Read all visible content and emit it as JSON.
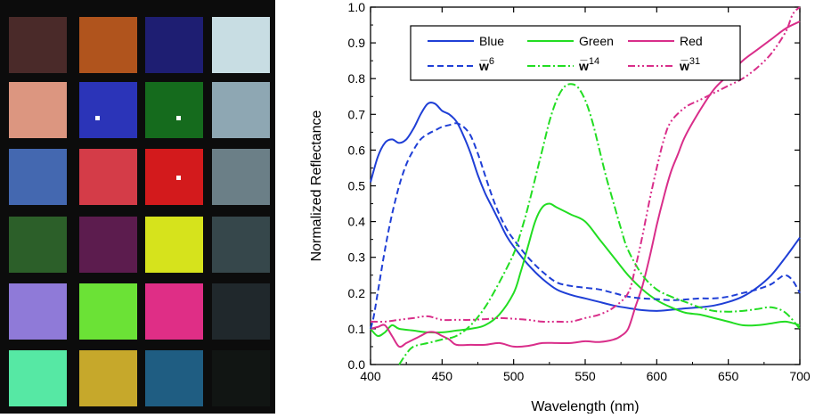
{
  "checker": {
    "patches": [
      [
        "#4a2a29",
        "#b0541d",
        "#1e1e72",
        "#c8dde3"
      ],
      [
        "#dc9680",
        "#2b34b8",
        "#156b1d",
        "#8ea7b3"
      ],
      [
        "#4468b0",
        "#d43c48",
        "#d31a1c",
        "#6b7f87"
      ],
      [
        "#2c5f29",
        "#5c1c4e",
        "#d6e31c",
        "#36474b"
      ],
      [
        "#8f7ad8",
        "#6be236",
        "#df2e86",
        "#20282c"
      ],
      [
        "#56e8a4",
        "#c6a82b",
        "#1f5d82",
        "#111513"
      ]
    ],
    "marked_patches": [
      [
        1,
        1
      ],
      [
        1,
        2
      ],
      [
        2,
        2
      ]
    ]
  },
  "chart_data": {
    "type": "line",
    "xlabel": "Wavelength (nm)",
    "ylabel": "Normalized Reflectance",
    "xlim": [
      400,
      700
    ],
    "ylim": [
      0,
      1.0
    ],
    "xticks": [
      "400",
      "450",
      "500",
      "550",
      "600",
      "650",
      "700"
    ],
    "yticks": [
      "0.0",
      "0.1",
      "0.2",
      "0.3",
      "0.4",
      "0.5",
      "0.6",
      "0.7",
      "0.8",
      "0.9",
      "1.0"
    ],
    "legend_position": "top",
    "series": [
      {
        "name": "Blue",
        "color": "#1f3fd6",
        "dash": "solid",
        "points": [
          [
            400,
            0.51
          ],
          [
            405,
            0.58
          ],
          [
            410,
            0.62
          ],
          [
            415,
            0.63
          ],
          [
            420,
            0.62
          ],
          [
            425,
            0.63
          ],
          [
            430,
            0.66
          ],
          [
            435,
            0.7
          ],
          [
            440,
            0.73
          ],
          [
            445,
            0.73
          ],
          [
            450,
            0.71
          ],
          [
            455,
            0.7
          ],
          [
            460,
            0.68
          ],
          [
            465,
            0.64
          ],
          [
            470,
            0.59
          ],
          [
            475,
            0.53
          ],
          [
            480,
            0.48
          ],
          [
            485,
            0.44
          ],
          [
            490,
            0.4
          ],
          [
            495,
            0.36
          ],
          [
            500,
            0.33
          ],
          [
            510,
            0.28
          ],
          [
            520,
            0.24
          ],
          [
            530,
            0.21
          ],
          [
            540,
            0.195
          ],
          [
            550,
            0.185
          ],
          [
            560,
            0.175
          ],
          [
            570,
            0.165
          ],
          [
            580,
            0.158
          ],
          [
            590,
            0.152
          ],
          [
            600,
            0.15
          ],
          [
            610,
            0.153
          ],
          [
            620,
            0.157
          ],
          [
            630,
            0.16
          ],
          [
            640,
            0.165
          ],
          [
            650,
            0.175
          ],
          [
            660,
            0.19
          ],
          [
            670,
            0.215
          ],
          [
            680,
            0.25
          ],
          [
            690,
            0.3
          ],
          [
            700,
            0.355
          ]
        ]
      },
      {
        "name": "Green",
        "color": "#22dd22",
        "dash": "solid",
        "points": [
          [
            400,
            0.1
          ],
          [
            405,
            0.08
          ],
          [
            410,
            0.09
          ],
          [
            415,
            0.11
          ],
          [
            420,
            0.1
          ],
          [
            430,
            0.095
          ],
          [
            440,
            0.09
          ],
          [
            450,
            0.09
          ],
          [
            460,
            0.095
          ],
          [
            470,
            0.1
          ],
          [
            480,
            0.11
          ],
          [
            490,
            0.14
          ],
          [
            500,
            0.2
          ],
          [
            505,
            0.26
          ],
          [
            510,
            0.33
          ],
          [
            515,
            0.4
          ],
          [
            520,
            0.44
          ],
          [
            525,
            0.45
          ],
          [
            530,
            0.44
          ],
          [
            540,
            0.42
          ],
          [
            550,
            0.4
          ],
          [
            560,
            0.35
          ],
          [
            570,
            0.3
          ],
          [
            580,
            0.25
          ],
          [
            590,
            0.21
          ],
          [
            600,
            0.18
          ],
          [
            610,
            0.16
          ],
          [
            620,
            0.145
          ],
          [
            630,
            0.14
          ],
          [
            640,
            0.13
          ],
          [
            650,
            0.12
          ],
          [
            660,
            0.11
          ],
          [
            670,
            0.11
          ],
          [
            680,
            0.115
          ],
          [
            690,
            0.12
          ],
          [
            700,
            0.11
          ]
        ]
      },
      {
        "name": "Red",
        "color": "#d92e8a",
        "dash": "solid",
        "points": [
          [
            400,
            0.1
          ],
          [
            405,
            0.105
          ],
          [
            410,
            0.11
          ],
          [
            415,
            0.08
          ],
          [
            420,
            0.05
          ],
          [
            425,
            0.06
          ],
          [
            430,
            0.07
          ],
          [
            435,
            0.08
          ],
          [
            440,
            0.09
          ],
          [
            445,
            0.09
          ],
          [
            450,
            0.08
          ],
          [
            455,
            0.07
          ],
          [
            460,
            0.055
          ],
          [
            470,
            0.055
          ],
          [
            480,
            0.055
          ],
          [
            490,
            0.06
          ],
          [
            500,
            0.05
          ],
          [
            510,
            0.052
          ],
          [
            520,
            0.06
          ],
          [
            530,
            0.06
          ],
          [
            540,
            0.06
          ],
          [
            550,
            0.065
          ],
          [
            560,
            0.063
          ],
          [
            570,
            0.07
          ],
          [
            575,
            0.08
          ],
          [
            580,
            0.1
          ],
          [
            585,
            0.16
          ],
          [
            590,
            0.22
          ],
          [
            595,
            0.3
          ],
          [
            600,
            0.39
          ],
          [
            605,
            0.47
          ],
          [
            610,
            0.54
          ],
          [
            615,
            0.59
          ],
          [
            620,
            0.64
          ],
          [
            630,
            0.71
          ],
          [
            640,
            0.77
          ],
          [
            650,
            0.81
          ],
          [
            660,
            0.85
          ],
          [
            670,
            0.88
          ],
          [
            680,
            0.91
          ],
          [
            690,
            0.94
          ],
          [
            700,
            0.96
          ]
        ]
      },
      {
        "name": "w̅",
        "sup": "6",
        "color": "#1f3fd6",
        "dash": "7,4",
        "points": [
          [
            400,
            0.1
          ],
          [
            402,
            0.13
          ],
          [
            405,
            0.2
          ],
          [
            410,
            0.32
          ],
          [
            415,
            0.42
          ],
          [
            420,
            0.5
          ],
          [
            425,
            0.56
          ],
          [
            430,
            0.6
          ],
          [
            435,
            0.63
          ],
          [
            440,
            0.645
          ],
          [
            445,
            0.655
          ],
          [
            450,
            0.665
          ],
          [
            455,
            0.67
          ],
          [
            460,
            0.675
          ],
          [
            465,
            0.665
          ],
          [
            470,
            0.64
          ],
          [
            475,
            0.59
          ],
          [
            480,
            0.53
          ],
          [
            485,
            0.47
          ],
          [
            490,
            0.42
          ],
          [
            495,
            0.38
          ],
          [
            500,
            0.35
          ],
          [
            510,
            0.3
          ],
          [
            520,
            0.26
          ],
          [
            530,
            0.23
          ],
          [
            540,
            0.22
          ],
          [
            550,
            0.215
          ],
          [
            560,
            0.21
          ],
          [
            570,
            0.2
          ],
          [
            580,
            0.19
          ],
          [
            590,
            0.185
          ],
          [
            600,
            0.183
          ],
          [
            610,
            0.18
          ],
          [
            620,
            0.182
          ],
          [
            630,
            0.185
          ],
          [
            640,
            0.185
          ],
          [
            650,
            0.19
          ],
          [
            660,
            0.2
          ],
          [
            670,
            0.21
          ],
          [
            680,
            0.225
          ],
          [
            685,
            0.24
          ],
          [
            690,
            0.25
          ],
          [
            695,
            0.235
          ],
          [
            700,
            0.2
          ]
        ]
      },
      {
        "name": "w̅",
        "sup": "14",
        "color": "#22dd22",
        "dash": "9,3,2,3",
        "points": [
          [
            420,
            0.0
          ],
          [
            425,
            0.03
          ],
          [
            430,
            0.05
          ],
          [
            440,
            0.06
          ],
          [
            450,
            0.07
          ],
          [
            460,
            0.08
          ],
          [
            470,
            0.11
          ],
          [
            480,
            0.16
          ],
          [
            490,
            0.23
          ],
          [
            500,
            0.31
          ],
          [
            505,
            0.37
          ],
          [
            510,
            0.44
          ],
          [
            515,
            0.52
          ],
          [
            520,
            0.6
          ],
          [
            525,
            0.68
          ],
          [
            530,
            0.74
          ],
          [
            535,
            0.775
          ],
          [
            540,
            0.785
          ],
          [
            545,
            0.775
          ],
          [
            550,
            0.74
          ],
          [
            555,
            0.68
          ],
          [
            560,
            0.6
          ],
          [
            565,
            0.52
          ],
          [
            570,
            0.45
          ],
          [
            575,
            0.38
          ],
          [
            580,
            0.32
          ],
          [
            590,
            0.25
          ],
          [
            600,
            0.21
          ],
          [
            610,
            0.19
          ],
          [
            620,
            0.175
          ],
          [
            630,
            0.16
          ],
          [
            640,
            0.15
          ],
          [
            650,
            0.148
          ],
          [
            660,
            0.15
          ],
          [
            670,
            0.155
          ],
          [
            680,
            0.16
          ],
          [
            690,
            0.145
          ],
          [
            700,
            0.1
          ]
        ]
      },
      {
        "name": "w̅",
        "sup": "31",
        "color": "#d92e8a",
        "dash": "8,3,2,3,2,3",
        "points": [
          [
            400,
            0.12
          ],
          [
            410,
            0.12
          ],
          [
            420,
            0.125
          ],
          [
            430,
            0.13
          ],
          [
            440,
            0.135
          ],
          [
            450,
            0.125
          ],
          [
            460,
            0.125
          ],
          [
            470,
            0.125
          ],
          [
            480,
            0.127
          ],
          [
            490,
            0.13
          ],
          [
            500,
            0.128
          ],
          [
            510,
            0.125
          ],
          [
            520,
            0.12
          ],
          [
            530,
            0.12
          ],
          [
            540,
            0.12
          ],
          [
            550,
            0.13
          ],
          [
            560,
            0.14
          ],
          [
            570,
            0.16
          ],
          [
            580,
            0.2
          ],
          [
            585,
            0.27
          ],
          [
            590,
            0.36
          ],
          [
            595,
            0.46
          ],
          [
            600,
            0.55
          ],
          [
            605,
            0.63
          ],
          [
            610,
            0.68
          ],
          [
            620,
            0.72
          ],
          [
            630,
            0.74
          ],
          [
            640,
            0.76
          ],
          [
            650,
            0.78
          ],
          [
            660,
            0.8
          ],
          [
            670,
            0.83
          ],
          [
            680,
            0.87
          ],
          [
            690,
            0.93
          ],
          [
            695,
            0.98
          ],
          [
            700,
            1.0
          ]
        ]
      }
    ]
  }
}
